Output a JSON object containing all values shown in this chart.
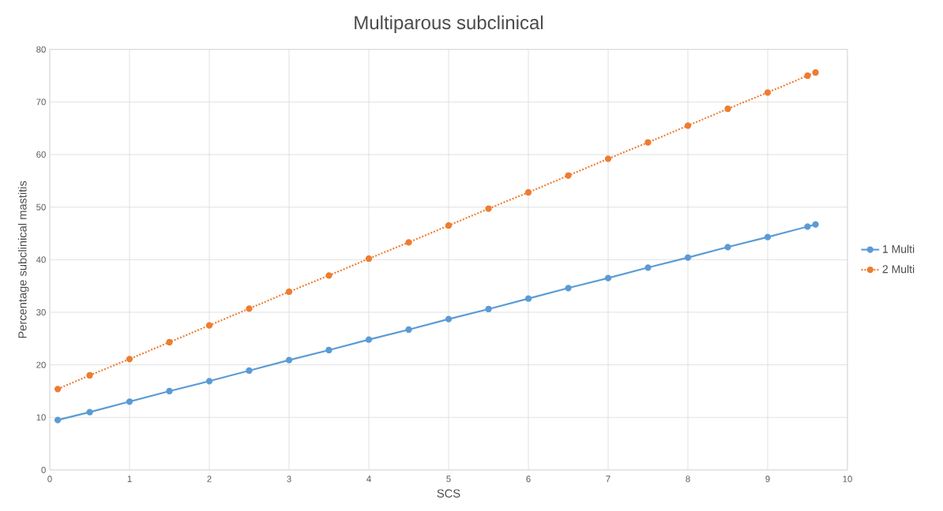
{
  "chart_data": {
    "type": "line",
    "title": "Multiparous subclinical",
    "xlabel": "SCS",
    "ylabel": "Percentage subclinical mastitis",
    "x": [
      0.1,
      0.5,
      1,
      1.5,
      2,
      2.5,
      3,
      3.5,
      4,
      4.5,
      5,
      5.5,
      6,
      6.5,
      7,
      7.5,
      8,
      8.5,
      9,
      9.5,
      9.6
    ],
    "series": [
      {
        "name": "1 Multi",
        "color": "#5b9bd5",
        "line_style": "solid",
        "values": [
          9.5,
          11.0,
          13.0,
          15.0,
          16.9,
          18.9,
          20.9,
          22.8,
          24.8,
          26.7,
          28.7,
          30.6,
          32.6,
          34.6,
          36.5,
          38.5,
          40.4,
          42.4,
          44.3,
          46.3,
          46.7
        ]
      },
      {
        "name": "2 Multi",
        "color": "#ed7d31",
        "line_style": "dotted",
        "values": [
          15.4,
          18.0,
          21.1,
          24.3,
          27.5,
          30.7,
          33.9,
          37.0,
          40.2,
          43.3,
          46.5,
          49.7,
          52.8,
          56.0,
          59.2,
          62.3,
          65.5,
          68.7,
          71.8,
          75.0,
          75.6
        ]
      }
    ],
    "xlim": [
      0,
      10
    ],
    "xticks": [
      0,
      1,
      2,
      3,
      4,
      5,
      6,
      7,
      8,
      9,
      10
    ],
    "ylim": [
      0,
      80
    ],
    "yticks": [
      0,
      10,
      20,
      30,
      40,
      50,
      60,
      70,
      80
    ],
    "grid": true,
    "legend": "right",
    "marker": "circle"
  }
}
